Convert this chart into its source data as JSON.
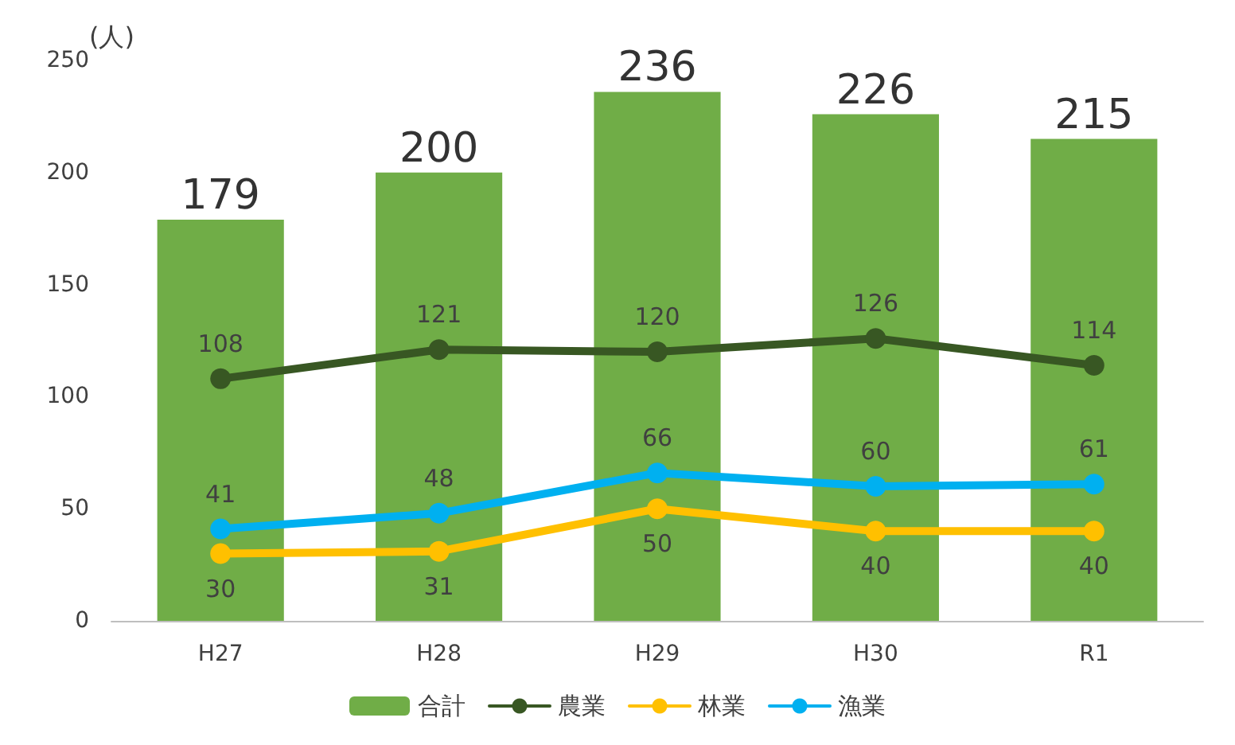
{
  "chart_data": {
    "type": "bar",
    "ylabel": "(人)",
    "categories": [
      "H27",
      "H28",
      "H29",
      "H30",
      "R1"
    ],
    "series": [
      {
        "name": "合計",
        "color": "#70ad47",
        "values": [
          179,
          200,
          236,
          226,
          215
        ]
      },
      {
        "name": "農業",
        "type": "line",
        "color": "#385723",
        "values": [
          108,
          121,
          120,
          126,
          114
        ]
      },
      {
        "name": "林業",
        "type": "line",
        "color": "#ffc000",
        "values": [
          30,
          31,
          50,
          40,
          40
        ]
      },
      {
        "name": "漁業",
        "type": "line",
        "color": "#00b0f0",
        "values": [
          41,
          48,
          66,
          60,
          61
        ]
      }
    ],
    "ylim": [
      0,
      250
    ],
    "yticks": [
      0,
      50,
      100,
      150,
      200,
      250
    ],
    "data_labels": true,
    "legend": "bottom",
    "grid": false,
    "marker": "circle"
  }
}
